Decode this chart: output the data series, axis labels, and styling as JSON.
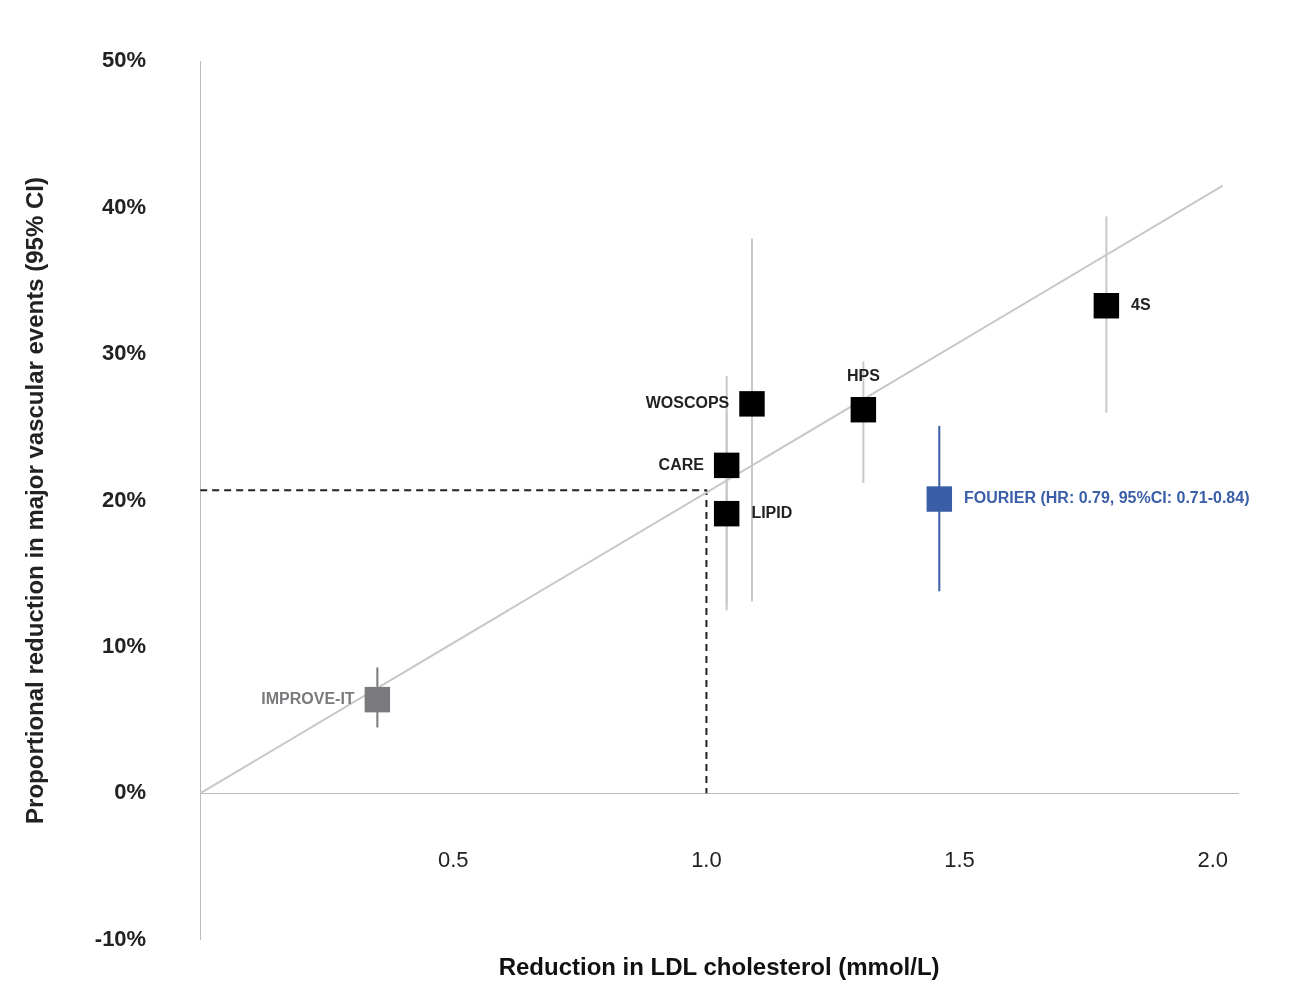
{
  "chart_data": {
    "type": "scatter",
    "marker": "square",
    "xlabel": "Reduction in LDL cholesterol (mmol/L)",
    "ylabel": "Proportional reduction in major vascular events (95% CI)",
    "xlim": [
      0,
      2.05
    ],
    "xticks": [
      0.5,
      {
        "value": 1,
        "label": "1.0"
      },
      1.5,
      {
        "value": 2,
        "label": "2.0"
      }
    ],
    "ylim": [
      -10,
      50
    ],
    "yticks": [
      {
        "value": -10,
        "label": "-10%"
      },
      {
        "value": 0,
        "label": "0%"
      },
      {
        "value": 10,
        "label": "10%"
      },
      {
        "value": 20,
        "label": "20%"
      },
      {
        "value": 30,
        "label": "30%"
      },
      {
        "value": 40,
        "label": "40%"
      },
      {
        "value": 50,
        "label": "50%"
      }
    ],
    "grid": false,
    "legend": false,
    "series": [
      {
        "name": "IMPROVE-IT",
        "color": "#7a7a7e",
        "x": [
          0.35
        ],
        "values": [
          6.4
        ],
        "errors": [
          [
            4.5,
            8.6
          ]
        ]
      },
      {
        "name": "LIPID",
        "color": "#000000",
        "x": [
          1.04
        ],
        "values": [
          19.1
        ],
        "errors": [
          [
            12.5,
            26.0
          ]
        ]
      },
      {
        "name": "CARE",
        "color": "#000000",
        "x": [
          1.04
        ],
        "values": [
          22.4
        ],
        "errors": [
          [
            13.0,
            28.5
          ]
        ]
      },
      {
        "name": "WOSCOPS",
        "color": "#000000",
        "x": [
          1.09
        ],
        "values": [
          26.6
        ],
        "errors": [
          [
            13.1,
            37.9
          ]
        ]
      },
      {
        "name": "HPS",
        "color": "#000000",
        "x": [
          1.31
        ],
        "values": [
          26.2
        ],
        "errors": [
          [
            21.2,
            29.5
          ]
        ]
      },
      {
        "name": "4S",
        "color": "#000000",
        "x": [
          1.79
        ],
        "values": [
          33.3
        ],
        "errors": [
          [
            26.0,
            39.4
          ]
        ]
      },
      {
        "name": "FOURIER (HR: 0.79, 95%CI: 0.71-0.84)",
        "color": "#3a5fa8",
        "x": [
          1.46
        ],
        "values": [
          20.1
        ],
        "errors": [
          [
            13.8,
            25.1
          ]
        ]
      },
      {
        "type": "line",
        "color": "#c8c8c8",
        "x": [
          0,
          2.02
        ],
        "values": [
          0,
          41.5
        ],
        "line_style": "solid",
        "marker": "none"
      },
      {
        "type": "line",
        "color": "#222222",
        "x": [
          0,
          1,
          1
        ],
        "values": [
          20.7,
          20.7,
          0
        ],
        "line_style": "dashed",
        "marker": "none"
      }
    ]
  }
}
